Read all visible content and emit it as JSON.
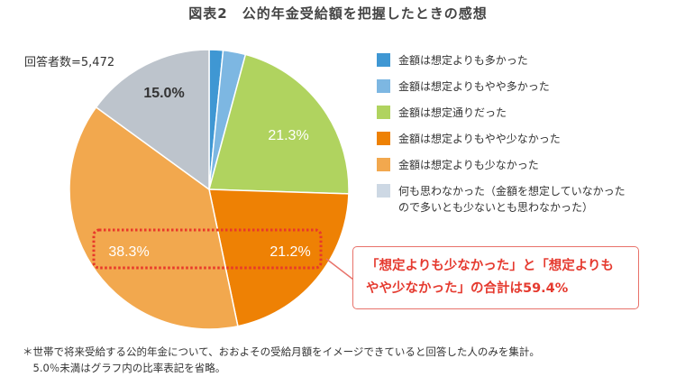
{
  "title": "図表2　公的年金受給額を把握したときの感想",
  "respondents_label": "回答者数=5,472",
  "chart_data": {
    "type": "pie",
    "title": "図表2　公的年金受給額を把握したときの感想",
    "categories": [
      "金額は想定よりも多かった",
      "金額は想定よりもやや多かった",
      "金額は想定通りだった",
      "金額は想定よりもやや少なかった",
      "金額は想定よりも少なかった",
      "何も思わなかった（金額を想定していなかったので多いとも少ないとも思わなかった）"
    ],
    "values": [
      1.6,
      2.6,
      21.3,
      21.2,
      38.3,
      15.0
    ],
    "data_labels": [
      "",
      "",
      "21.3%",
      "21.2%",
      "38.3%",
      "15.0%"
    ],
    "colors": [
      "#3f97d3",
      "#7db7e2",
      "#b0d35f",
      "#ee8104",
      "#f2a84e",
      "#bdc4cc"
    ],
    "start_angle_deg": 0,
    "direction": "clockwise",
    "legend_position": "right",
    "annotation": "「想定よりも少なかった」と「想定よりもやや少なかった」の合計は59.4%"
  },
  "legend": [
    {
      "label": "金額は想定よりも多かった",
      "color": "#3f97d3"
    },
    {
      "label": "金額は想定よりもやや多かった",
      "color": "#7db7e2"
    },
    {
      "label": "金額は想定通りだった",
      "color": "#b0d35f"
    },
    {
      "label": "金額は想定よりもやや少なかった",
      "color": "#ee8104"
    },
    {
      "label": "金額は想定よりも少なかった",
      "color": "#f2a84e"
    },
    {
      "label": "何も思わなかった（金額を想定していなかった\nので多いとも少ないとも思わなかった）",
      "color": "#cdd8e4"
    }
  ],
  "slice_labels": {
    "s_expected": "21.3%",
    "s_slightly_less": "21.2%",
    "s_less": "38.3%",
    "s_nothing": "15.0%"
  },
  "callout": {
    "line1": "「想定よりも少なかった」と「想定よりも",
    "line2": "やや少なかった」の合計は59.4%"
  },
  "footnote": "＊世帯で将来受給する公的年金について、おおよその受給月額をイメージできていると回答した人のみを集計。\n　5.0％未満はグラフ内の比率表記を省略。"
}
